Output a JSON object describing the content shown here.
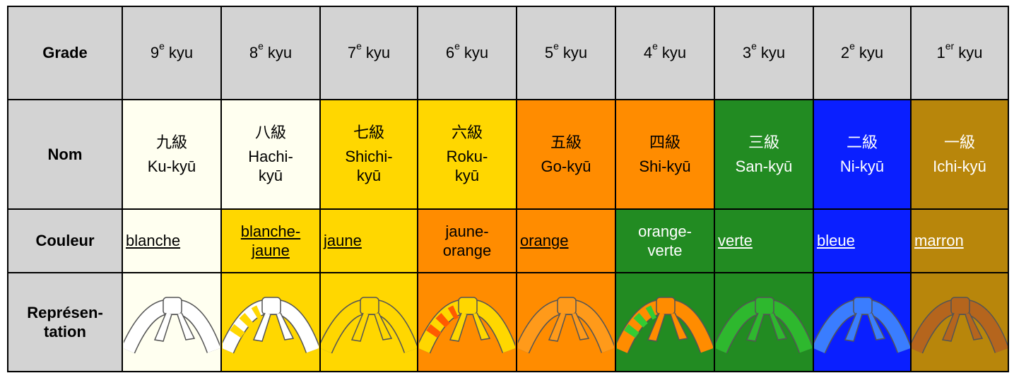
{
  "row_headers": [
    "Grade",
    "Nom",
    "Couleur",
    "Représen-tation"
  ],
  "columns": [
    {
      "number": "9",
      "suffix": "e",
      "unit": "kyu",
      "kanji": "九級",
      "romaji": "Ku-kyū",
      "couleur": "blanche"
    },
    {
      "number": "8",
      "suffix": "e",
      "unit": "kyu",
      "kanji": "八級",
      "romaji": "Hachi-kyū",
      "couleur": "blanche-jaune"
    },
    {
      "number": "7",
      "suffix": "e",
      "unit": "kyu",
      "kanji": "七級",
      "romaji": "Shichi-kyū",
      "couleur": "jaune"
    },
    {
      "number": "6",
      "suffix": "e",
      "unit": "kyu",
      "kanji": "六級",
      "romaji": "Roku-kyū",
      "couleur": "jaune-orange"
    },
    {
      "number": "5",
      "suffix": "e",
      "unit": "kyu",
      "kanji": "五級",
      "romaji": "Go-kyū",
      "couleur": "orange"
    },
    {
      "number": "4",
      "suffix": "e",
      "unit": "kyu",
      "kanji": "四級",
      "romaji": "Shi-kyū",
      "couleur": "orange-verte"
    },
    {
      "number": "3",
      "suffix": "e",
      "unit": "kyu",
      "kanji": "三級",
      "romaji": "San-kyū",
      "couleur": "verte"
    },
    {
      "number": "2",
      "suffix": "e",
      "unit": "kyu",
      "kanji": "二級",
      "romaji": "Ni-kyū",
      "couleur": "bleue"
    },
    {
      "number": "1",
      "suffix": "er",
      "unit": "kyu",
      "kanji": "一級",
      "romaji": "Ichi-kyū",
      "couleur": "marron"
    }
  ]
}
